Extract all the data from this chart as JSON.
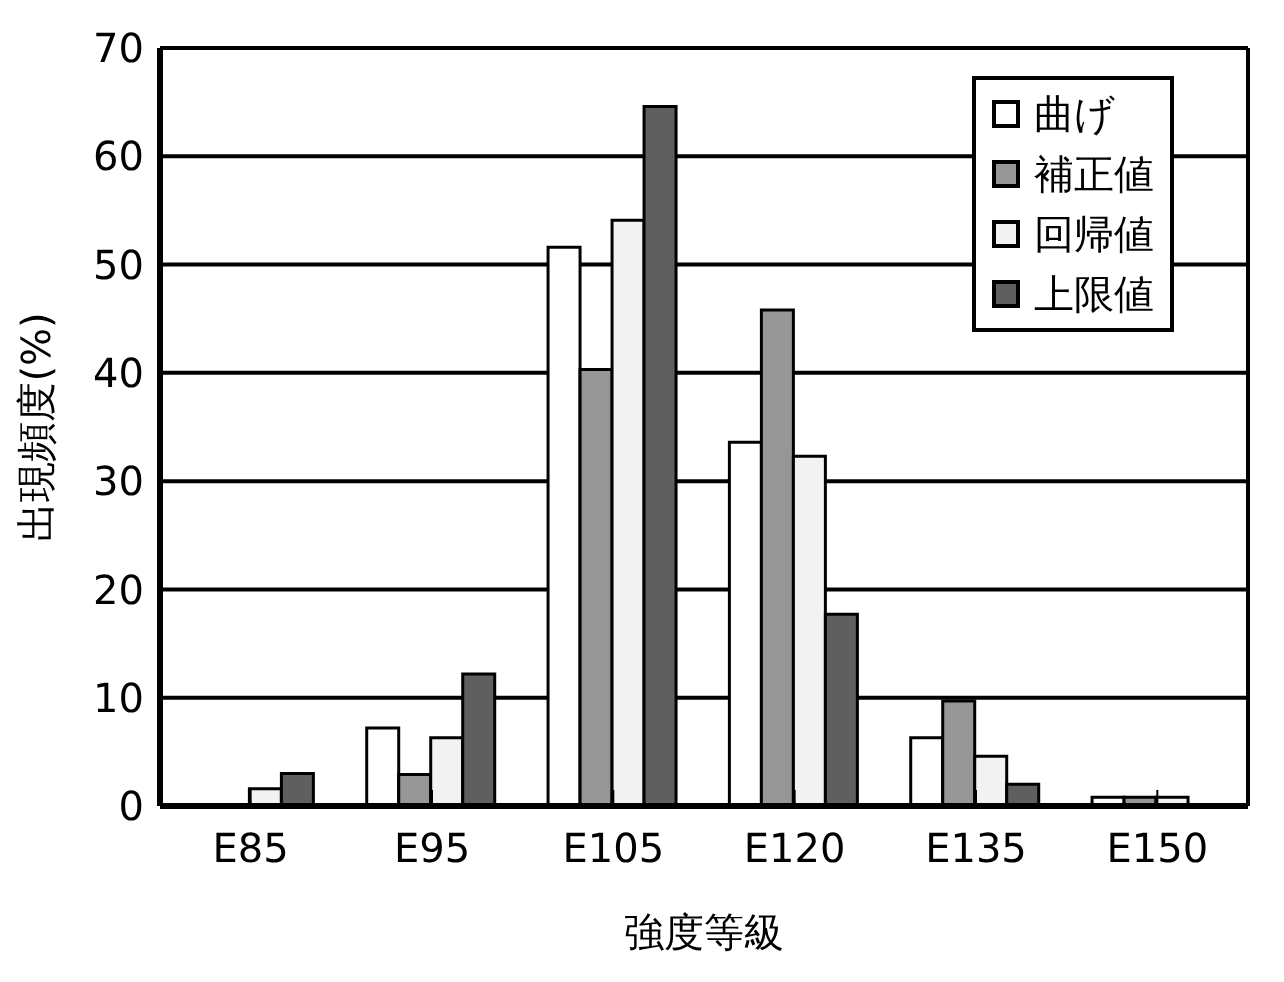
{
  "chart_data": {
    "type": "bar",
    "xlabel": "強度等級",
    "ylabel": "出現頻度(%)",
    "categories": [
      "E85",
      "E95",
      "E105",
      "E120",
      "E135",
      "E150"
    ],
    "series": [
      {
        "name": "曲げ",
        "color": "#ffffff",
        "values": [
          0,
          7.2,
          51.6,
          33.6,
          6.3,
          0.8
        ]
      },
      {
        "name": "補正値",
        "color": "#969696",
        "values": [
          0,
          2.9,
          40.3,
          45.8,
          9.7,
          0.8
        ]
      },
      {
        "name": "回帰値",
        "color": "#f2f2f2",
        "values": [
          1.6,
          6.3,
          54.1,
          32.3,
          4.6,
          0.8
        ]
      },
      {
        "name": "上限値",
        "color": "#5f5f5f",
        "values": [
          3.0,
          12.2,
          64.6,
          17.7,
          2.0,
          0
        ]
      }
    ],
    "ylim": [
      0,
      70
    ],
    "yticks": [
      0,
      10,
      20,
      30,
      40,
      50,
      60,
      70
    ],
    "grid": "y",
    "legend": "top right"
  }
}
